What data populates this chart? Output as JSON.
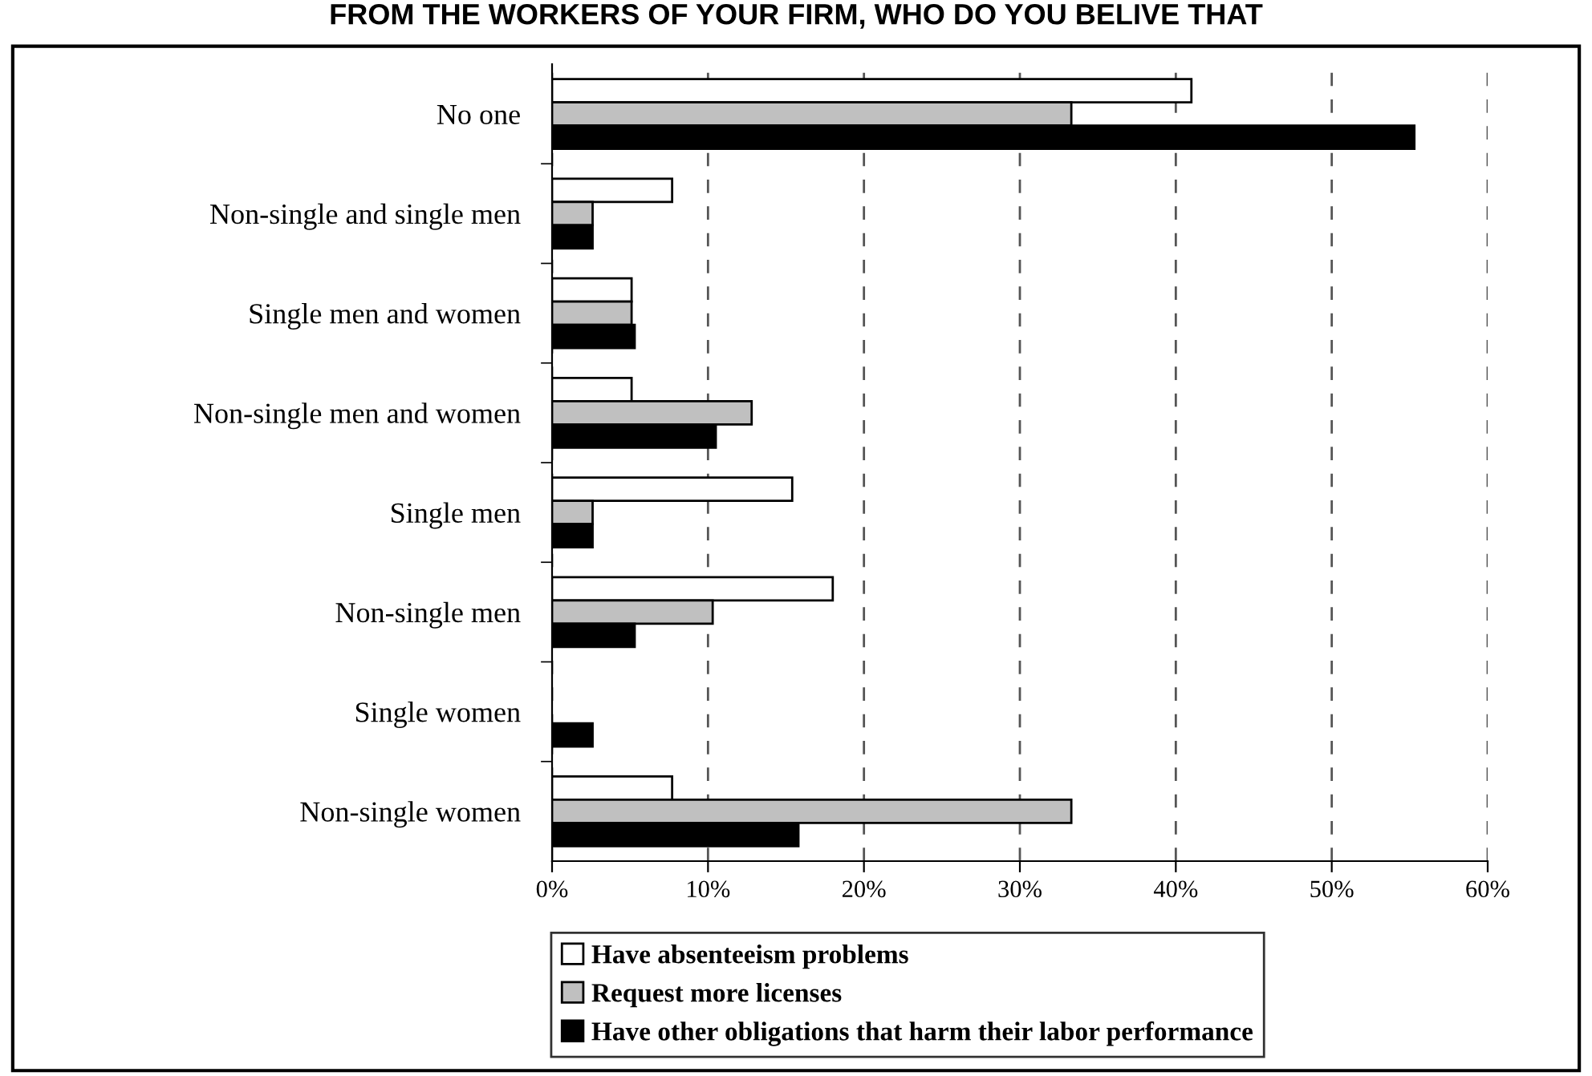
{
  "chart_data": {
    "type": "bar",
    "orientation": "horizontal",
    "title": "FROM THE WORKERS OF YOUR FIRM, WHO DO YOU BELIVE THAT",
    "categories": [
      "No one",
      "Non-single and single men",
      "Single men and women",
      "Non-single men and women",
      "Single men",
      "Non-single men",
      "Single women",
      "Non-single women"
    ],
    "series": [
      {
        "name": "Have absenteeism problems",
        "color": "#ffffff",
        "values": [
          41.0,
          7.7,
          5.1,
          5.1,
          15.4,
          18.0,
          0,
          7.7
        ]
      },
      {
        "name": "Request more licenses",
        "color": "#c0c0c0",
        "values": [
          33.3,
          2.6,
          5.1,
          12.8,
          2.6,
          10.3,
          0,
          33.3
        ]
      },
      {
        "name": "Have other obligations that harm their labor performance",
        "color": "#000000",
        "values": [
          55.3,
          2.6,
          5.3,
          10.5,
          2.6,
          5.3,
          2.6,
          15.8
        ]
      }
    ],
    "xlim": [
      0,
      60
    ],
    "xticks": [
      {
        "value": 0,
        "label": "0%"
      },
      {
        "value": 10,
        "label": "10%"
      },
      {
        "value": 20,
        "label": "20%"
      },
      {
        "value": 30,
        "label": "30%"
      },
      {
        "value": 40,
        "label": "40%"
      },
      {
        "value": 50,
        "label": "50%"
      },
      {
        "value": 60,
        "label": "60%"
      }
    ],
    "grid": "x",
    "legend": "bottom"
  }
}
